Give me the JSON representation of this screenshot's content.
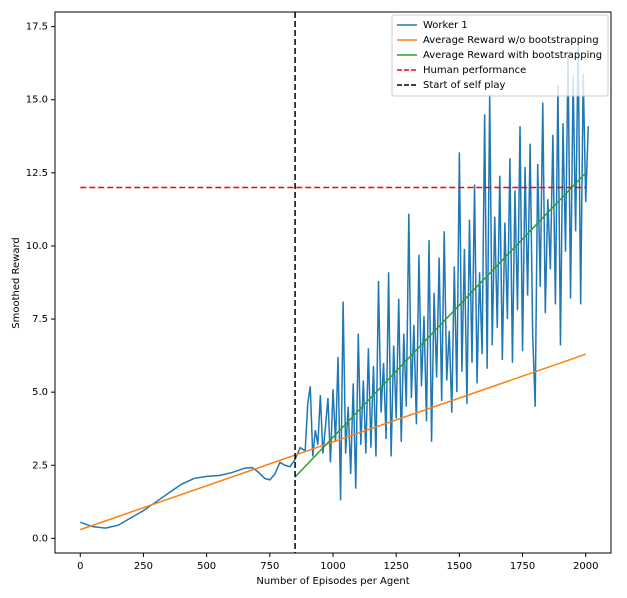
{
  "chart_data": {
    "type": "line",
    "xlabel": "Number of Episodes per Agent",
    "ylabel": "Smoothed Reward",
    "xlim": [
      -100,
      2100
    ],
    "ylim": [
      -0.5,
      18
    ],
    "xticks": [
      0,
      250,
      500,
      750,
      1000,
      1250,
      1500,
      1750,
      2000
    ],
    "yticks": [
      {
        "value": 0,
        "label": "0.0"
      },
      2.5,
      {
        "value": 5,
        "label": "5.0"
      },
      7.5,
      {
        "value": 10,
        "label": "10.0"
      },
      12.5,
      {
        "value": 15,
        "label": "15.0"
      },
      17.5
    ],
    "legend": "upper right",
    "series": [
      {
        "name": "Worker 1",
        "color": "#1f77b4",
        "dash": false,
        "x": [
          0,
          50,
          100,
          150,
          200,
          250,
          300,
          350,
          400,
          450,
          500,
          550,
          600,
          650,
          680,
          700,
          730,
          750,
          770,
          790,
          810,
          830,
          850,
          870,
          890,
          900,
          910,
          920,
          930,
          940,
          950,
          960,
          970,
          980,
          990,
          1000,
          1010,
          1020,
          1030,
          1040,
          1050,
          1060,
          1070,
          1080,
          1090,
          1100,
          1110,
          1120,
          1130,
          1140,
          1150,
          1160,
          1170,
          1180,
          1190,
          1200,
          1210,
          1220,
          1230,
          1240,
          1250,
          1260,
          1270,
          1280,
          1290,
          1300,
          1310,
          1320,
          1330,
          1340,
          1350,
          1360,
          1370,
          1380,
          1390,
          1400,
          1410,
          1420,
          1430,
          1440,
          1450,
          1460,
          1470,
          1480,
          1490,
          1500,
          1510,
          1520,
          1530,
          1540,
          1550,
          1560,
          1570,
          1580,
          1590,
          1600,
          1610,
          1620,
          1630,
          1640,
          1650,
          1660,
          1670,
          1680,
          1690,
          1700,
          1710,
          1720,
          1730,
          1740,
          1750,
          1760,
          1770,
          1780,
          1790,
          1800,
          1810,
          1820,
          1830,
          1840,
          1850,
          1860,
          1870,
          1880,
          1890,
          1900,
          1910,
          1920,
          1930,
          1940,
          1950,
          1960,
          1970,
          1980,
          1990,
          2000,
          2010
        ],
        "values": [
          0.55,
          0.4,
          0.35,
          0.45,
          0.7,
          0.95,
          1.25,
          1.55,
          1.85,
          2.05,
          2.12,
          2.15,
          2.25,
          2.4,
          2.42,
          2.3,
          2.05,
          2.0,
          2.2,
          2.6,
          2.5,
          2.45,
          2.7,
          3.1,
          3.0,
          4.6,
          5.2,
          2.8,
          3.7,
          3.2,
          4.9,
          2.9,
          3.8,
          4.8,
          2.6,
          5.1,
          3.3,
          6.2,
          1.3,
          8.1,
          2.9,
          4.5,
          2.2,
          5.3,
          1.7,
          7.0,
          3.2,
          5.4,
          2.9,
          6.5,
          3.1,
          5.9,
          2.8,
          8.8,
          4.3,
          6.0,
          3.4,
          9.1,
          2.8,
          6.6,
          4.1,
          8.2,
          3.3,
          7.0,
          4.5,
          11.1,
          4.8,
          7.3,
          3.9,
          9.7,
          5.2,
          7.6,
          4.0,
          10.2,
          3.3,
          8.4,
          5.5,
          9.6,
          4.7,
          10.5,
          5.4,
          7.1,
          4.3,
          9.3,
          5.0,
          13.2,
          5.7,
          9.9,
          4.6,
          10.9,
          6.0,
          12.1,
          5.3,
          9.1,
          6.3,
          14.5,
          5.8,
          15.2,
          6.6,
          11.0,
          7.2,
          12.4,
          6.1,
          10.8,
          7.5,
          13.0,
          6.0,
          11.9,
          7.8,
          14.1,
          6.4,
          12.7,
          8.3,
          13.5,
          7.0,
          4.5,
          12.8,
          8.6,
          14.9,
          7.7,
          11.6,
          9.2,
          13.8,
          8.0,
          15.5,
          6.6,
          14.2,
          9.8,
          16.5,
          8.2,
          15.8,
          10.5,
          17.0,
          8.0,
          15.9,
          11.5,
          14.1
        ]
      },
      {
        "name": "Average Reward w/o bootstrapping",
        "color": "#ff7f0e",
        "dash": false,
        "x": [
          0,
          2000
        ],
        "values": [
          0.3,
          6.3
        ]
      },
      {
        "name": "Average Reward with bootstrapping",
        "color": "#2ca02c",
        "dash": false,
        "x": [
          850,
          2000
        ],
        "values": [
          2.1,
          12.5
        ]
      },
      {
        "name": "Human performance",
        "color": "#ff0000",
        "dash": true,
        "x": [
          0,
          2000
        ],
        "values": [
          12,
          12
        ]
      }
    ],
    "vlines": [
      {
        "name": "Start of self play",
        "color": "#000000",
        "x": 850
      }
    ]
  }
}
